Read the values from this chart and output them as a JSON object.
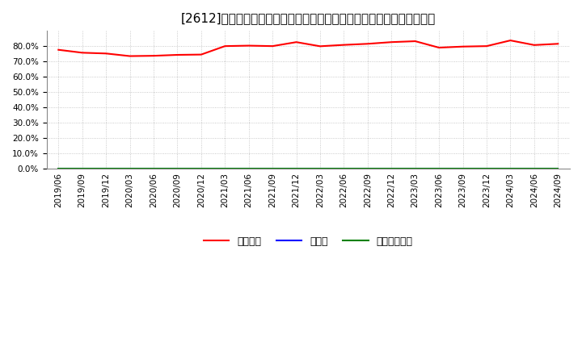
{
  "title": "[2612]　自己資本、のれん、繰延税金資産の総資産に対する比率の推移",
  "x_labels": [
    "2019/06",
    "2019/09",
    "2019/12",
    "2020/03",
    "2020/06",
    "2020/09",
    "2020/12",
    "2021/03",
    "2021/06",
    "2021/09",
    "2021/12",
    "2022/03",
    "2022/06",
    "2022/09",
    "2022/12",
    "2023/03",
    "2023/06",
    "2023/09",
    "2023/12",
    "2024/03",
    "2024/06",
    "2024/09"
  ],
  "equity_ratio": [
    0.776,
    0.757,
    0.752,
    0.735,
    0.737,
    0.743,
    0.745,
    0.8,
    0.803,
    0.8,
    0.826,
    0.799,
    0.808,
    0.815,
    0.826,
    0.832,
    0.79,
    0.797,
    0.8,
    0.837,
    0.807,
    0.815
  ],
  "goodwill_ratio": [
    0.0,
    0.0,
    0.0,
    0.0,
    0.0,
    0.0,
    0.0,
    0.0,
    0.0,
    0.0,
    0.0,
    0.0,
    0.0,
    0.0,
    0.0,
    0.0,
    0.0,
    0.0,
    0.0,
    0.0,
    0.0,
    0.0
  ],
  "deferred_tax_ratio": [
    0.0,
    0.0,
    0.0,
    0.0,
    0.0,
    0.0,
    0.0,
    0.0,
    0.0,
    0.0,
    0.0,
    0.0,
    0.0,
    0.0,
    0.0,
    0.0,
    0.0,
    0.0,
    0.0,
    0.0,
    0.0,
    0.0
  ],
  "equity_color": "#ff0000",
  "goodwill_color": "#0000ff",
  "deferred_tax_color": "#008000",
  "legend_labels": [
    "自己資本",
    "のれん",
    "繰延税金資産"
  ],
  "ylim": [
    0.0,
    0.9
  ],
  "yticks": [
    0.0,
    0.1,
    0.2,
    0.3,
    0.4,
    0.5,
    0.6,
    0.7,
    0.8
  ],
  "background_color": "#ffffff",
  "plot_bg_color": "#ffffff",
  "grid_color": "#bbbbbb",
  "title_fontsize": 11,
  "axis_fontsize": 7.5,
  "legend_fontsize": 9
}
